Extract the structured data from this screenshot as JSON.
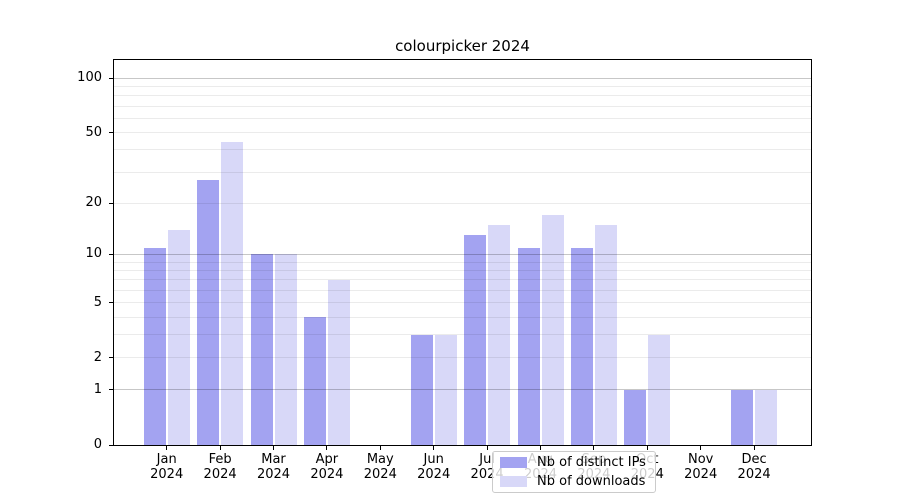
{
  "chart_data": {
    "type": "bar",
    "title": "colourpicker 2024",
    "scale": "log1p",
    "categories": [
      "Jan",
      "Feb",
      "Mar",
      "Apr",
      "May",
      "Jun",
      "Jul",
      "Aug",
      "Sep",
      "Oct",
      "Nov",
      "Dec"
    ],
    "x_year": "2024",
    "series": [
      {
        "name": "Nb of distinct IPs",
        "color": "#a3a3f1",
        "values": [
          11,
          27,
          10,
          4,
          0,
          3,
          13,
          11,
          11,
          1,
          0,
          1
        ]
      },
      {
        "name": "Nb of downloads",
        "color": "#d8d8f8",
        "values": [
          14,
          44,
          10,
          7,
          0,
          3,
          15,
          17,
          15,
          3,
          0,
          1
        ]
      }
    ],
    "y_tick_labels": [
      "100",
      "50",
      "20",
      "10",
      "5",
      "2",
      "1",
      "0"
    ],
    "y_tick_values": [
      100,
      50,
      20,
      10,
      5,
      2,
      1,
      0
    ],
    "ylim": [
      0,
      125
    ],
    "xlabel": "",
    "ylabel": "",
    "grid": "on",
    "legend_position": "lower center"
  }
}
